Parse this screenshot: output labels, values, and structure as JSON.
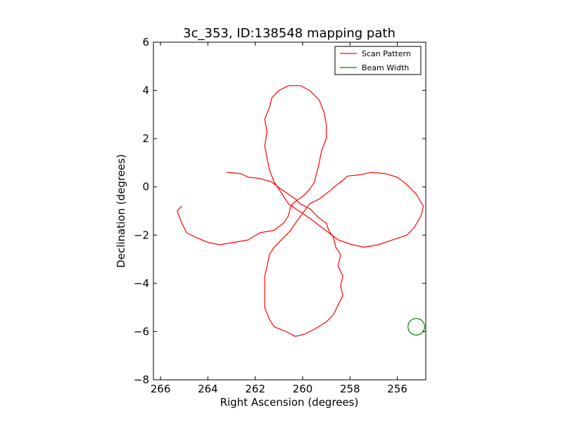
{
  "chart_data": {
    "type": "line",
    "title": "3c_353, ID:138548 mapping path",
    "xlabel": "Right Ascension (degrees)",
    "ylabel": "Declination (degrees)",
    "xlim": [
      266.3,
      254.8
    ],
    "ylim": [
      -8,
      6
    ],
    "x_ticks": [
      266,
      264,
      262,
      260,
      258,
      256
    ],
    "y_ticks": [
      -8,
      -6,
      -4,
      -2,
      0,
      2,
      4,
      6
    ],
    "x_tick_labels": [
      "266",
      "264",
      "262",
      "260",
      "258",
      "256"
    ],
    "y_tick_labels": [
      "−8",
      "−6",
      "−4",
      "−2",
      "0",
      "2",
      "4",
      "6"
    ],
    "grid": false,
    "legend": {
      "position": "top-right",
      "entries": [
        "Scan Pattern",
        "Beam Width"
      ]
    },
    "series": [
      {
        "name": "Scan Pattern",
        "color": "#ff0000",
        "style": "line",
        "points": [
          [
            263.2,
            0.6
          ],
          [
            262.6,
            0.55
          ],
          [
            262.3,
            0.4
          ],
          [
            261.8,
            0.35
          ],
          [
            261.3,
            0.2
          ],
          [
            260.9,
            -0.1
          ],
          [
            260.6,
            -0.3
          ],
          [
            260.3,
            -0.5
          ],
          [
            260.1,
            -0.7
          ],
          [
            259.7,
            -0.9
          ],
          [
            259.3,
            -1.3
          ],
          [
            259.0,
            -1.5
          ],
          [
            258.9,
            -1.8
          ],
          [
            258.7,
            -2.1
          ],
          [
            258.6,
            -2.5
          ],
          [
            258.4,
            -2.8
          ],
          [
            258.5,
            -3.3
          ],
          [
            258.3,
            -3.7
          ],
          [
            258.4,
            -4.1
          ],
          [
            258.3,
            -4.5
          ],
          [
            258.5,
            -4.9
          ],
          [
            258.7,
            -5.3
          ],
          [
            259.0,
            -5.6
          ],
          [
            259.5,
            -5.9
          ],
          [
            259.9,
            -6.1
          ],
          [
            260.3,
            -6.2
          ],
          [
            260.7,
            -6.0
          ],
          [
            261.2,
            -5.8
          ],
          [
            261.4,
            -5.5
          ],
          [
            261.6,
            -5.0
          ],
          [
            261.6,
            -4.6
          ],
          [
            261.6,
            -4.2
          ],
          [
            261.6,
            -3.7
          ],
          [
            261.5,
            -3.3
          ],
          [
            261.4,
            -2.8
          ],
          [
            261.2,
            -2.5
          ],
          [
            260.9,
            -2.2
          ],
          [
            260.5,
            -1.8
          ],
          [
            260.3,
            -1.5
          ],
          [
            260.0,
            -1.1
          ],
          [
            259.7,
            -0.7
          ],
          [
            259.3,
            -0.5
          ],
          [
            258.9,
            -0.2
          ],
          [
            258.6,
            0.05
          ],
          [
            258.4,
            0.2
          ],
          [
            258.1,
            0.45
          ],
          [
            257.6,
            0.5
          ],
          [
            257.1,
            0.6
          ],
          [
            256.5,
            0.55
          ],
          [
            256.0,
            0.4
          ],
          [
            255.6,
            0.1
          ],
          [
            255.2,
            -0.3
          ],
          [
            254.9,
            -0.8
          ],
          [
            255.0,
            -1.2
          ],
          [
            255.3,
            -1.7
          ],
          [
            255.6,
            -2.0
          ],
          [
            256.2,
            -2.2
          ],
          [
            256.8,
            -2.4
          ],
          [
            257.4,
            -2.5
          ],
          [
            257.9,
            -2.4
          ],
          [
            258.5,
            -2.2
          ],
          [
            258.9,
            -1.9
          ],
          [
            259.3,
            -1.6
          ],
          [
            259.7,
            -1.3
          ],
          [
            260.0,
            -1.1
          ],
          [
            260.3,
            -0.9
          ],
          [
            260.6,
            -0.7
          ],
          [
            260.8,
            -0.4
          ],
          [
            261.0,
            -0.1
          ],
          [
            261.2,
            0.2
          ],
          [
            261.4,
            0.7
          ],
          [
            261.5,
            1.2
          ],
          [
            261.6,
            1.7
          ],
          [
            261.5,
            2.3
          ],
          [
            261.6,
            2.8
          ],
          [
            261.4,
            3.3
          ],
          [
            261.3,
            3.7
          ],
          [
            261.0,
            4.0
          ],
          [
            260.6,
            4.2
          ],
          [
            260.1,
            4.2
          ],
          [
            259.7,
            4.0
          ],
          [
            259.3,
            3.6
          ],
          [
            259.1,
            3.1
          ],
          [
            259.0,
            2.6
          ],
          [
            259.0,
            2.0
          ],
          [
            259.2,
            1.5
          ],
          [
            259.3,
            1.0
          ],
          [
            259.4,
            0.6
          ],
          [
            259.5,
            0.2
          ],
          [
            259.7,
            -0.1
          ],
          [
            260.0,
            -0.4
          ],
          [
            260.3,
            -0.6
          ],
          [
            260.5,
            -0.8
          ],
          [
            260.6,
            -1.2
          ],
          [
            260.8,
            -1.5
          ],
          [
            261.2,
            -1.8
          ],
          [
            261.8,
            -1.9
          ],
          [
            262.3,
            -2.2
          ],
          [
            262.9,
            -2.3
          ],
          [
            263.5,
            -2.4
          ],
          [
            264.0,
            -2.3
          ],
          [
            264.5,
            -2.1
          ],
          [
            264.9,
            -1.9
          ],
          [
            265.1,
            -1.5
          ],
          [
            265.3,
            -1.0
          ],
          [
            265.1,
            -0.8
          ]
        ]
      },
      {
        "name": "Beam Width",
        "color": "#007f00",
        "style": "circle",
        "center": [
          255.2,
          -5.8
        ],
        "radius_deg": 0.35
      }
    ]
  }
}
